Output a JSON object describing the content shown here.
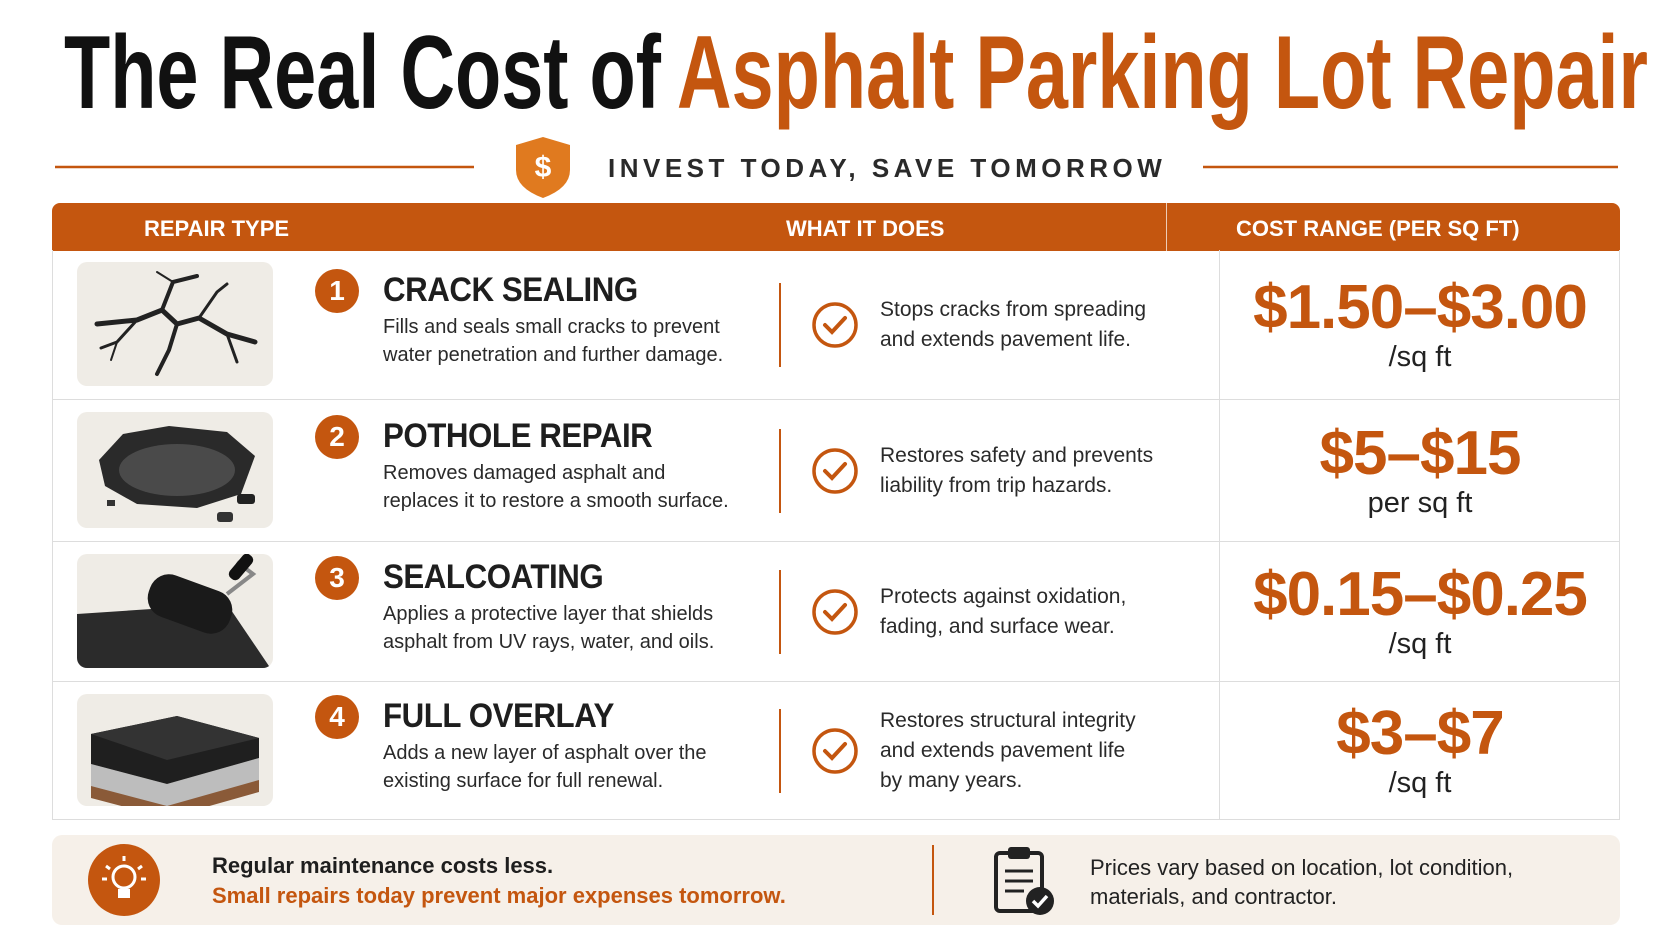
{
  "header": {
    "title_dark": "The Real Cost of",
    "title_accent": "Asphalt Parking Lot Repair",
    "badge": "$",
    "tagline": "INVEST TODAY, SAVE TOMORROW"
  },
  "table": {
    "columns": [
      "REPAIR TYPE",
      "WHAT IT DOES",
      "COST RANGE (PER SQ FT)"
    ],
    "rows": [
      {
        "number": "1",
        "name": "CRACK SEALING",
        "description": [
          "Fills and seals small cracks to prevent",
          "water penetration and further damage."
        ],
        "benefit": [
          "Stops cracks from spreading",
          "and extends pavement life."
        ],
        "price": "$1.50–$3.00",
        "unit": "/sq ft"
      },
      {
        "number": "2",
        "name": "POTHOLE REPAIR",
        "description": [
          "Removes damaged asphalt and",
          "replaces it to restore a smooth surface."
        ],
        "benefit": [
          "Restores safety and prevents",
          "liability from trip hazards."
        ],
        "price": "$5–$15",
        "unit": "per sq ft"
      },
      {
        "number": "3",
        "name": "SEALCOATING",
        "description": [
          "Applies a protective layer that shields",
          "asphalt from UV rays, water, and oils."
        ],
        "benefit": [
          "Protects against oxidation,",
          "fading, and surface wear."
        ],
        "price": "$0.15–$0.25",
        "unit": "/sq ft"
      },
      {
        "number": "4",
        "name": "FULL OVERLAY",
        "description": [
          "Adds a new layer of asphalt over the",
          "existing surface for full renewal."
        ],
        "benefit": [
          "Restores structural integrity",
          "and extends pavement life",
          "by many years."
        ],
        "price": "$3–$7",
        "unit": "/sq ft"
      }
    ]
  },
  "footer": {
    "tip": [
      "Regular maintenance costs less.",
      "Small repairs today prevent major expenses tomorrow."
    ],
    "note": [
      "Prices vary based on location, lot condition,",
      "materials, and contractor."
    ]
  }
}
